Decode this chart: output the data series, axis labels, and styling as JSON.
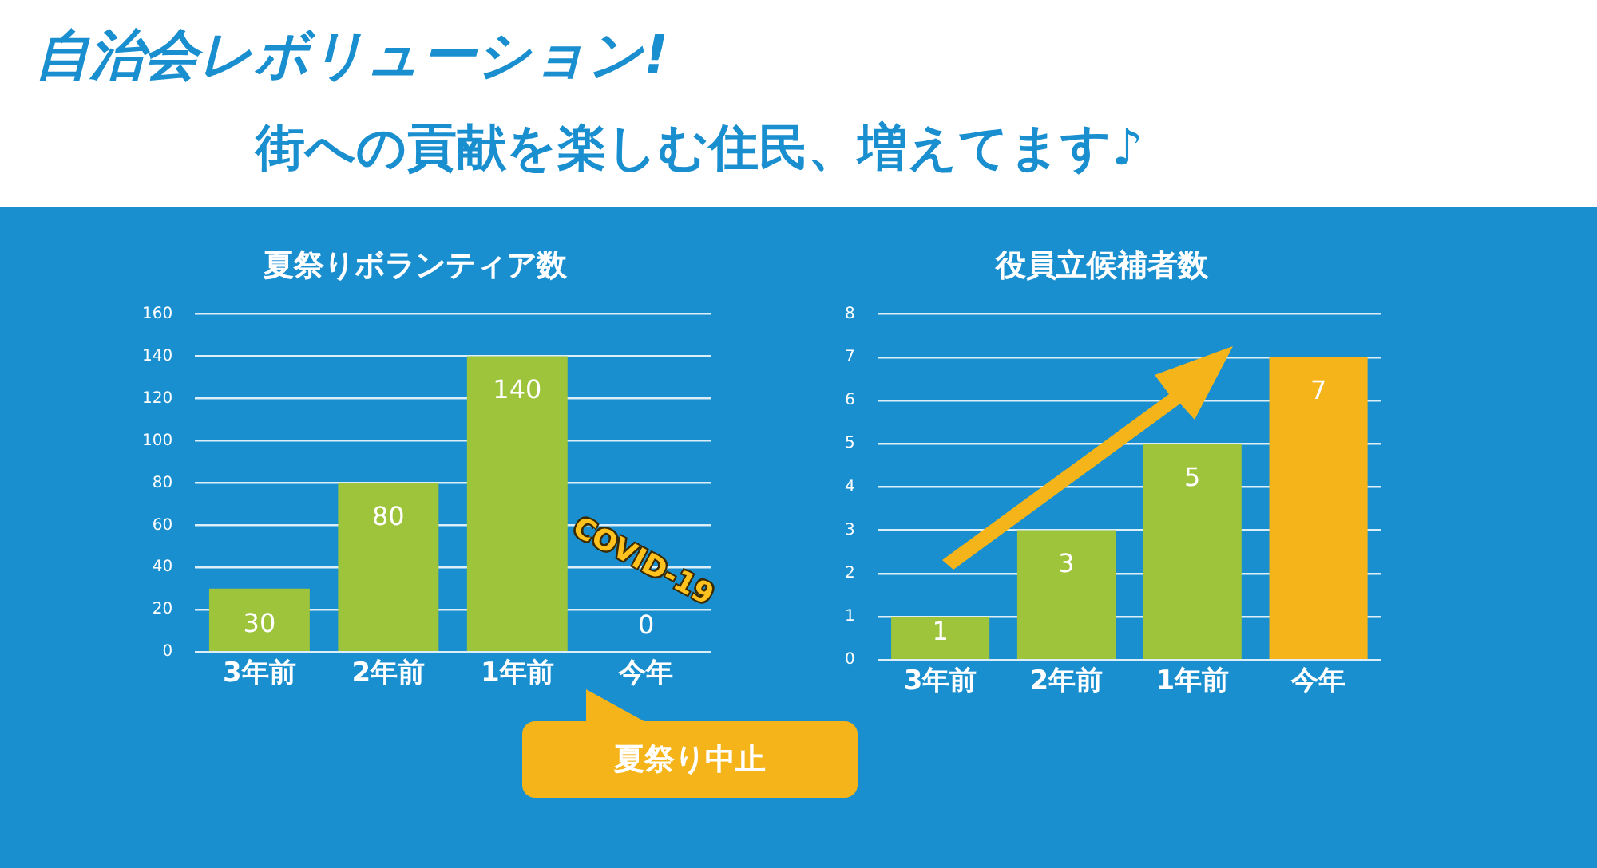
{
  "chart_data": [
    {
      "type": "other",
      "title": "自治会レボリューション!",
      "subtitle": "街への貢献を楽しむ住民、増えてます♪"
    },
    {
      "type": "bar",
      "title": "夏祭りボランティア数",
      "categories": [
        "3年前",
        "2年前",
        "1年前",
        "今年"
      ],
      "values": [
        30,
        80,
        140,
        0
      ],
      "color": "#9dc43a",
      "ylim": [
        0,
        160
      ],
      "yticks": [
        0,
        20,
        40,
        60,
        80,
        100,
        120,
        140,
        160
      ],
      "grid": "y",
      "data_labels": true,
      "annotations": [
        "COVID-19",
        "夏祭り中止"
      ]
    },
    {
      "type": "bar",
      "title": "役員立候補者数",
      "categories": [
        "3年前",
        "2年前",
        "1年前",
        "今年"
      ],
      "values": [
        1,
        3,
        5,
        7
      ],
      "colors": [
        "#9dc43a",
        "#9dc43a",
        "#9dc43a",
        "#f4b41a"
      ],
      "ylim": [
        0,
        8
      ],
      "yticks": [
        0,
        1,
        2,
        3,
        4,
        5,
        6,
        7,
        8
      ],
      "grid": "y",
      "data_labels": true
    }
  ]
}
